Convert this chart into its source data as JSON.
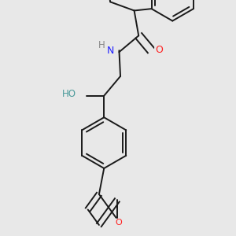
{
  "background_color": "#e8e8e8",
  "bond_color": "#1a1a1a",
  "atom_colors": {
    "N": "#2020ff",
    "O": "#ff2020",
    "H_O": "#4a9a9a",
    "H_N": "#888888",
    "C": "#1a1a1a"
  },
  "figsize": [
    3.0,
    3.0
  ],
  "dpi": 100
}
